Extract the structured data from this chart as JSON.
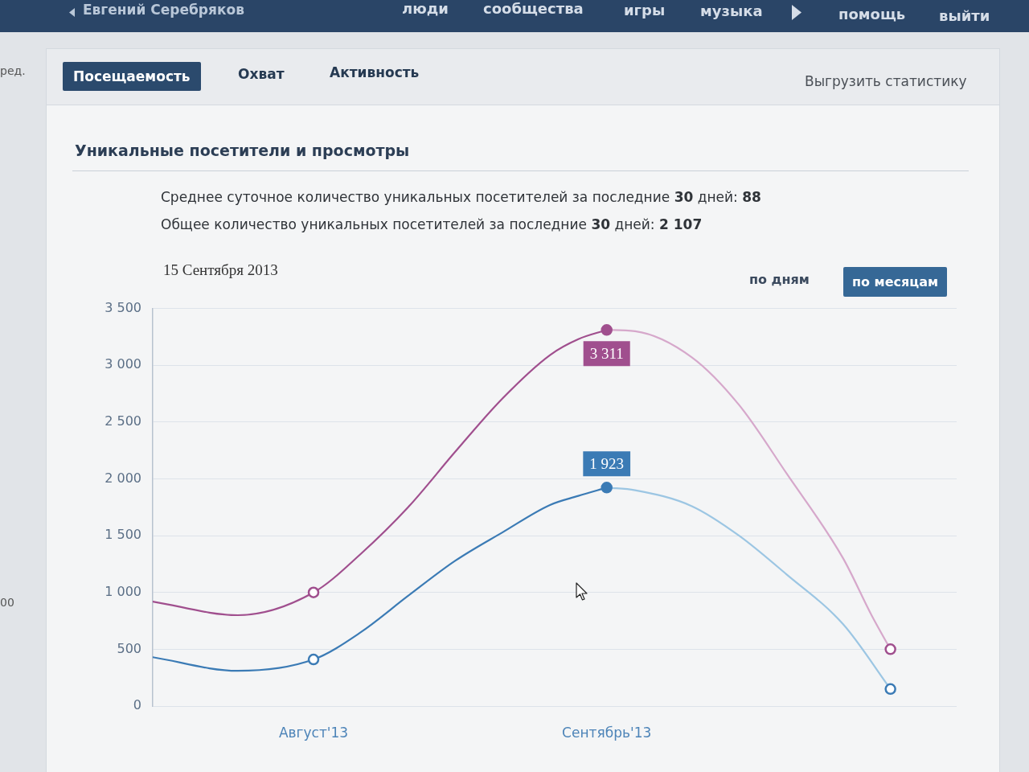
{
  "chart_data": {
    "type": "line",
    "title": "Уникальные посетители и просмотры",
    "subtitle": "Среднее суточное количество уникальных посетителей за последние 30 дней: 88",
    "annotations": [
      "Общее количество уникальных посетителей за последние 30 дней: 2 107",
      "15 Сентября 2013",
      "по дням",
      "по месяцам",
      "Посещаемость",
      "Охват",
      "Активность",
      "Выгрузить статистику",
      "Евгений Серебряков",
      "люди",
      "сообщества",
      "игры",
      "музыка",
      "помощь",
      "выйти",
      "ред.",
      "00"
    ],
    "xlim": [
      "2013-07-15",
      "2013-10-08"
    ],
    "xticks": [
      {
        "value": "2013-08",
        "label": "Август'13"
      },
      {
        "value": "2013-09",
        "label": "Сентябрь'13"
      }
    ],
    "ylim": [
      0,
      3500
    ],
    "yticks": [
      0,
      500,
      {
        "value": 1000,
        "label": "1 000"
      },
      {
        "value": 1500,
        "label": "1 500"
      },
      {
        "value": 2000,
        "label": "2 000"
      },
      {
        "value": 2500,
        "label": "2 500"
      },
      {
        "value": 3000,
        "label": "3 000"
      },
      {
        "value": 3500,
        "label": "3 500"
      }
    ],
    "grid": "y",
    "marker": "circle",
    "series": [
      {
        "marker": "none",
        "color": "#a04f8e",
        "x": [
          "2013-07-15",
          "2013-07-24",
          "2013-08",
          "2013-08-06",
          "2013-08-11",
          "2013-08-16",
          "2013-08-21",
          "2013-08-26",
          "2013-08-29",
          "2013-09"
        ],
        "values": [
          920,
          800,
          1000,
          1340,
          1750,
          2240,
          2710,
          3090,
          3230,
          3311
        ]
      },
      {
        "marker": "none",
        "color": "#d6a8cb",
        "x": [
          "2013-09",
          "2013-09-04",
          "2013-09-10",
          "2013-09-15",
          "2013-09-20",
          "2013-09-26",
          "2013-09-29",
          "2013-10"
        ],
        "values": [
          3311,
          3300,
          3070,
          2650,
          2050,
          1300,
          800,
          500
        ]
      },
      {
        "marker": "none",
        "color": "#3b7bb5",
        "x": [
          "2013-07-15",
          "2013-07-24",
          "2013-08",
          "2013-08-06",
          "2013-08-11",
          "2013-08-16",
          "2013-08-21",
          "2013-08-26",
          "2013-08-29",
          "2013-09"
        ],
        "values": [
          430,
          310,
          410,
          650,
          970,
          1280,
          1530,
          1770,
          1850,
          1923
        ]
      },
      {
        "marker": "none",
        "color": "#9cc6e3",
        "x": [
          "2013-09",
          "2013-09-04",
          "2013-09-10",
          "2013-09-15",
          "2013-09-20",
          "2013-09-26",
          "2013-10"
        ],
        "values": [
          1923,
          1900,
          1760,
          1500,
          1160,
          720,
          150
        ]
      },
      {
        "type": "scatter",
        "color": "#a04f8e",
        "x": [
          "2013-08",
          "2013-09",
          "2013-10"
        ],
        "values": [
          1000,
          3311,
          500
        ],
        "value_labels": [
          null,
          "3 311",
          null
        ]
      },
      {
        "type": "scatter",
        "color": "#3b7bb5",
        "x": [
          "2013-08",
          "2013-09",
          "2013-10"
        ],
        "values": [
          410,
          1923,
          150
        ],
        "value_labels": [
          null,
          "1 923",
          null
        ]
      }
    ]
  }
}
